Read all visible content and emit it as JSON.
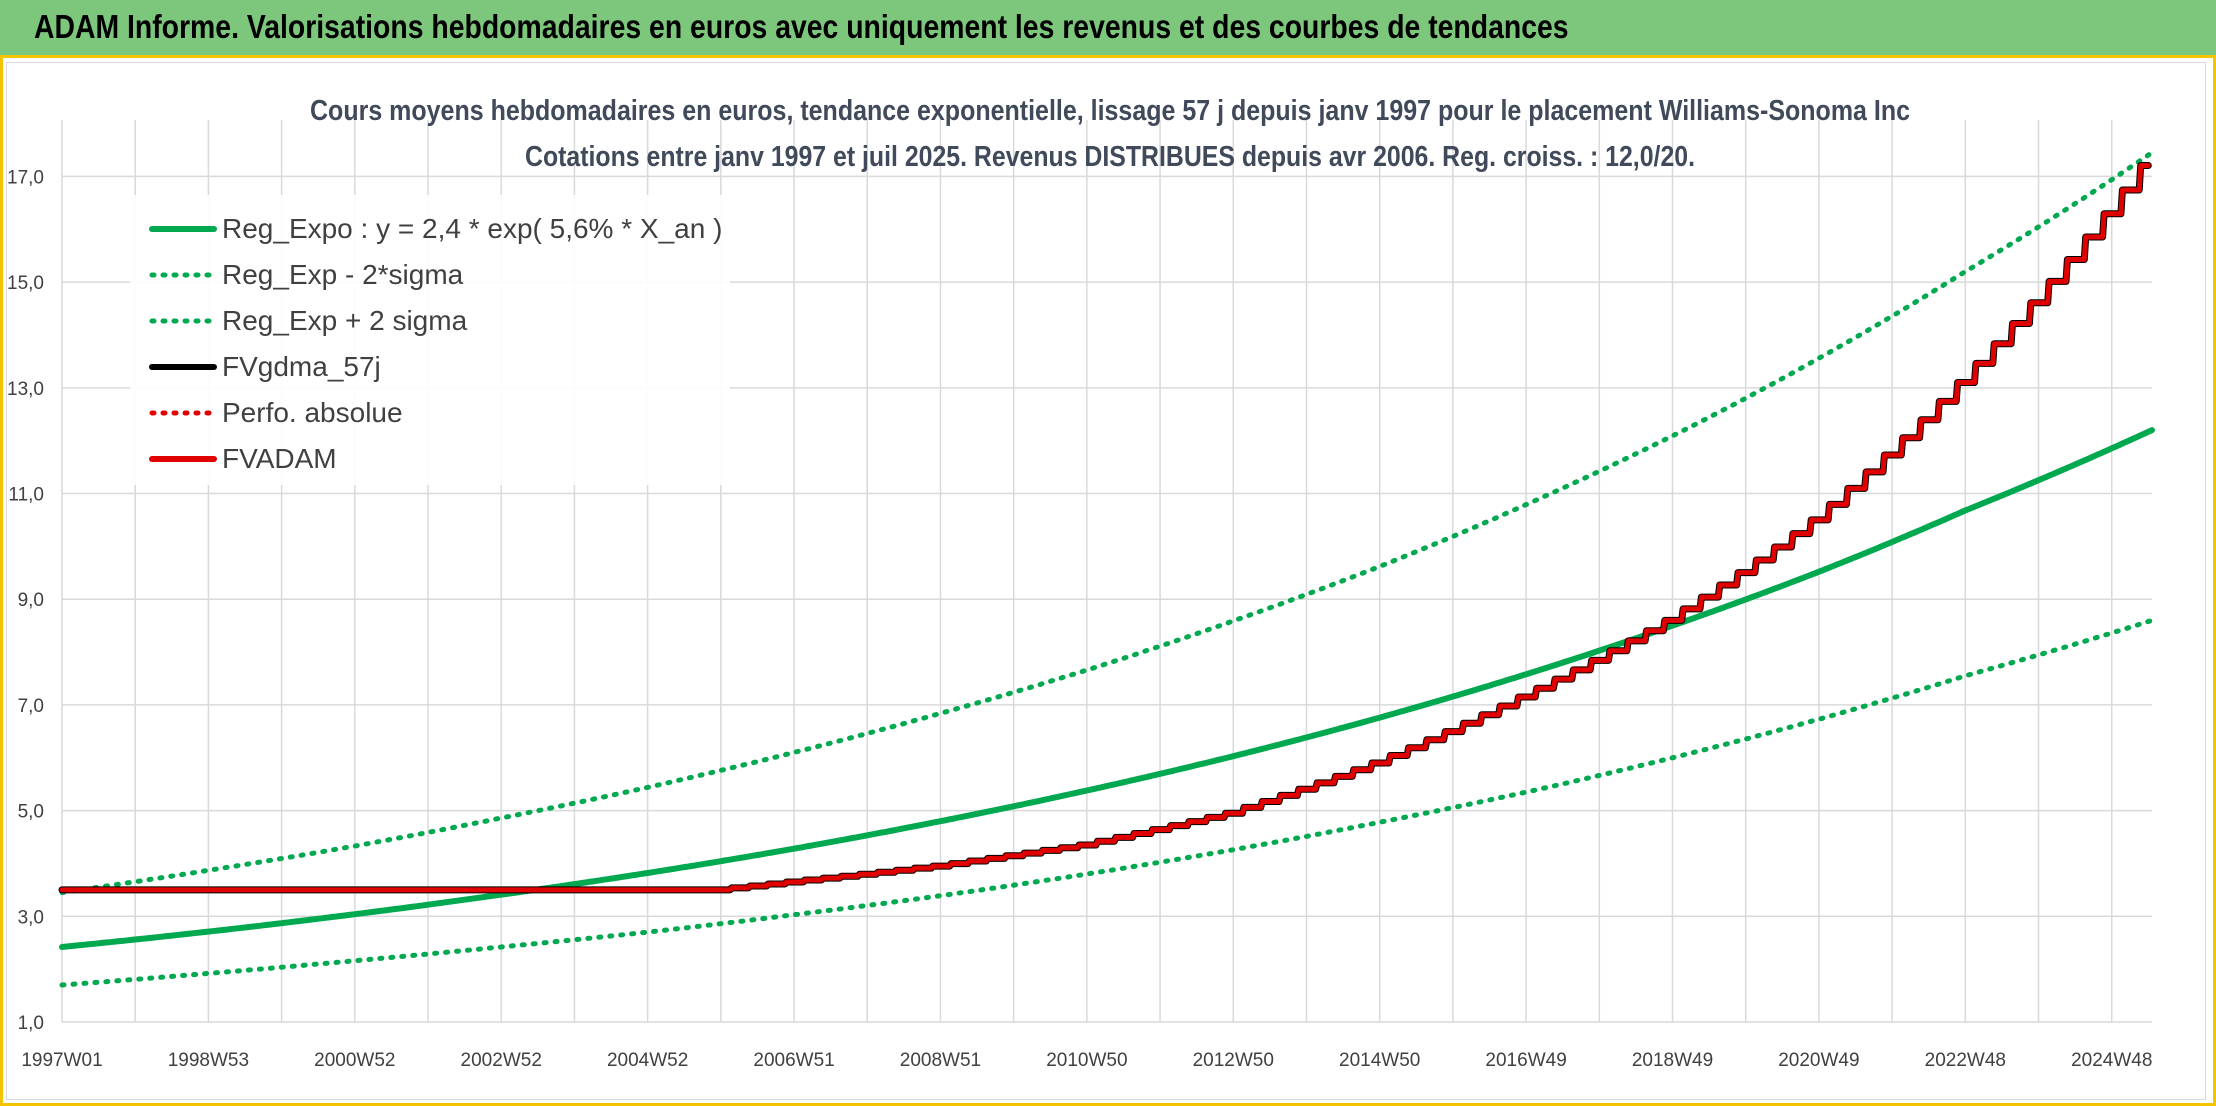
{
  "header": {
    "title": "ADAM Informe. Valorisations hebdomadaires en euros avec uniquement les revenus et des courbes de tendances"
  },
  "colors": {
    "banner": "#7dc77d",
    "banner_border": "#f5c400",
    "green": "#00a84f",
    "black": "#000000",
    "red": "#e00000",
    "grid": "#d9d9d9"
  },
  "chart_data": {
    "type": "line",
    "title": "Cours moyens hebdomadaires en euros, tendance exponentielle, lissage 57 j depuis janv 1997 pour le placement Williams-Sonoma Inc",
    "subtitle": "Cotations entre janv 1997 et juil 2025. Revenus DISTRIBUES depuis avr 2006. Reg. croiss. : 12,0/20.",
    "xlabel": "",
    "ylabel": "",
    "x_range": [
      1997.0,
      2025.55
    ],
    "ylim": [
      1.0,
      17.5
    ],
    "y_ticks": [
      1.0,
      3.0,
      5.0,
      7.0,
      9.0,
      11.0,
      13.0,
      15.0,
      17.0
    ],
    "y_tick_labels": [
      "1,0",
      "3,0",
      "5,0",
      "7,0",
      "9,0",
      "11,0",
      "13,0",
      "15,0",
      "17,0"
    ],
    "x_ticks": [
      {
        "label": "1997W01",
        "x": 1997.0
      },
      {
        "label": "1998W53",
        "x": 1999.0
      },
      {
        "label": "2000W52",
        "x": 2001.0
      },
      {
        "label": "2002W52",
        "x": 2003.0
      },
      {
        "label": "2004W52",
        "x": 2005.0
      },
      {
        "label": "2006W51",
        "x": 2007.0
      },
      {
        "label": "2008W51",
        "x": 2009.0
      },
      {
        "label": "2010W50",
        "x": 2011.0
      },
      {
        "label": "2012W50",
        "x": 2013.0
      },
      {
        "label": "2014W50",
        "x": 2015.0
      },
      {
        "label": "2016W49",
        "x": 2017.0
      },
      {
        "label": "2018W49",
        "x": 2019.0
      },
      {
        "label": "2020W49",
        "x": 2021.0
      },
      {
        "label": "2022W48",
        "x": 2023.0
      },
      {
        "label": "2024W48",
        "x": 2025.0
      }
    ],
    "grid": true,
    "legend_position": "top-left",
    "series": [
      {
        "name": "Reg_Expo : y = 2,4 * exp( 5,6% *  X_an )",
        "color": "#00a84f",
        "style": "solid",
        "x": [
          1997.0,
          1999.0,
          2001.0,
          2003.0,
          2005.0,
          2007.0,
          2009.0,
          2011.0,
          2013.0,
          2015.0,
          2017.0,
          2019.0,
          2021.0,
          2023.0,
          2025.55
        ],
        "values": [
          2.42,
          2.71,
          3.04,
          3.41,
          3.82,
          4.28,
          4.8,
          5.38,
          6.03,
          6.76,
          7.58,
          8.5,
          9.52,
          10.68,
          12.2
        ]
      },
      {
        "name": "Reg_Exp - 2*sigma",
        "color": "#00a84f",
        "style": "dotted",
        "x": [
          1997.0,
          1999.0,
          2001.0,
          2003.0,
          2005.0,
          2007.0,
          2009.0,
          2011.0,
          2013.0,
          2015.0,
          2017.0,
          2019.0,
          2021.0,
          2023.0,
          2025.55
        ],
        "values": [
          1.7,
          1.92,
          2.16,
          2.42,
          2.7,
          3.03,
          3.39,
          3.8,
          4.26,
          4.78,
          5.35,
          6.0,
          6.73,
          7.55,
          8.6
        ]
      },
      {
        "name": "Reg_Exp + 2 sigma",
        "color": "#00a84f",
        "style": "dotted",
        "x": [
          1997.0,
          1999.0,
          2001.0,
          2003.0,
          2005.0,
          2007.0,
          2009.0,
          2011.0,
          2013.0,
          2015.0,
          2017.0,
          2019.0,
          2021.0,
          2023.0,
          2025.55
        ],
        "values": [
          3.45,
          3.87,
          4.33,
          4.86,
          5.44,
          6.1,
          6.84,
          7.66,
          8.59,
          9.62,
          10.79,
          12.09,
          13.56,
          15.2,
          17.45
        ]
      },
      {
        "name": "FVgdma_57j",
        "color": "#000000",
        "style": "solid",
        "x": [
          1997.0,
          2006.0,
          2007.0,
          2009.0,
          2011.0,
          2013.0,
          2015.0,
          2017.0,
          2019.0,
          2021.0,
          2023.0,
          2025.55
        ],
        "values": [
          3.5,
          3.5,
          3.65,
          3.95,
          4.35,
          4.95,
          5.9,
          7.15,
          8.6,
          10.5,
          13.1,
          17.3
        ]
      },
      {
        "name": "Perfo. absolue",
        "color": "#e00000",
        "style": "dotted",
        "x": [
          1997.0,
          2006.0,
          2007.0,
          2009.0,
          2011.0,
          2013.0,
          2015.0,
          2017.0,
          2019.0,
          2021.0,
          2023.0,
          2025.55
        ],
        "values": [
          3.5,
          3.5,
          3.65,
          3.95,
          4.35,
          4.95,
          5.9,
          7.15,
          8.6,
          10.5,
          13.1,
          17.3
        ]
      },
      {
        "name": "FVADAM",
        "color": "#e00000",
        "style": "solid",
        "x": [
          1997.0,
          2006.0,
          2007.0,
          2009.0,
          2011.0,
          2013.0,
          2015.0,
          2017.0,
          2019.0,
          2021.0,
          2023.0,
          2025.55
        ],
        "values": [
          3.5,
          3.5,
          3.65,
          3.95,
          4.35,
          4.95,
          5.9,
          7.15,
          8.6,
          10.5,
          13.1,
          17.3
        ]
      }
    ]
  }
}
